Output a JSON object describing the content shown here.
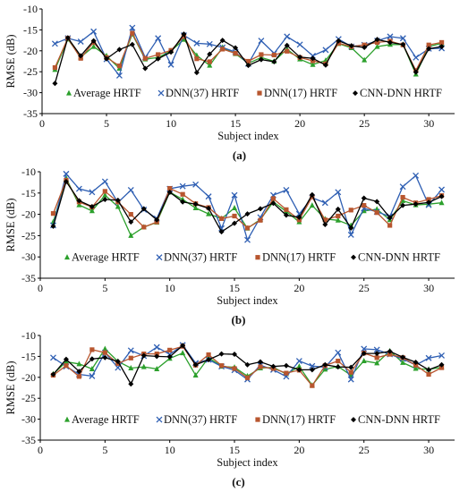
{
  "chart_data": [
    {
      "type": "line",
      "panel_label": "(a)",
      "xlabel": "Subject index",
      "ylabel": "RMSE (dB)",
      "xlim": [
        0,
        32
      ],
      "ylim": [
        -35,
        -10
      ],
      "xticks": [
        0,
        5,
        10,
        15,
        20,
        25,
        30
      ],
      "yticks": [
        -35,
        -30,
        -25,
        -20,
        -15,
        -10
      ],
      "grid": "none",
      "legend": "bottom-inside",
      "x": [
        1,
        2,
        3,
        4,
        5,
        6,
        7,
        8,
        9,
        10,
        11,
        12,
        13,
        14,
        15,
        16,
        17,
        18,
        19,
        20,
        21,
        22,
        23,
        24,
        25,
        26,
        27,
        28,
        29,
        30,
        31
      ],
      "series": [
        {
          "name": "Average HRTF",
          "color": "#2ca02c",
          "marker": "triangle",
          "values": [
            -24.5,
            -17.2,
            -21.5,
            -19.0,
            -21.2,
            -24.2,
            -16.0,
            -22.0,
            -21.6,
            -20.0,
            -17.3,
            -21.1,
            -23.5,
            -19.2,
            -20.7,
            -23.0,
            -21.6,
            -22.5,
            -19.6,
            -22.0,
            -23.3,
            -22.3,
            -18.3,
            -19.3,
            -22.2,
            -19.0,
            -18.5,
            -18.5,
            -25.6,
            -19.0,
            -18.2
          ]
        },
        {
          "name": "DNN(37) HRTF",
          "color": "#2f5fb3",
          "marker": "x",
          "values": [
            -18.3,
            -17.0,
            -17.8,
            -15.4,
            -22.0,
            -25.9,
            -14.5,
            -21.6,
            -17.0,
            -23.3,
            -16.3,
            -18.2,
            -18.4,
            -19.2,
            -20.3,
            -23.1,
            -17.6,
            -20.6,
            -16.6,
            -18.5,
            -21.2,
            -19.8,
            -17.2,
            -19.0,
            -18.6,
            -17.6,
            -16.6,
            -17.0,
            -21.6,
            -19.5,
            -19.4
          ]
        },
        {
          "name": "DNN(17) HRTF",
          "color": "#b8562f",
          "marker": "square",
          "values": [
            -24.0,
            -17.0,
            -21.8,
            -18.0,
            -21.6,
            -23.6,
            -15.8,
            -21.8,
            -20.9,
            -19.9,
            -16.6,
            -21.9,
            -22.6,
            -19.6,
            -20.6,
            -22.5,
            -20.9,
            -21.0,
            -20.1,
            -21.6,
            -22.4,
            -23.1,
            -18.2,
            -19.0,
            -18.6,
            -18.0,
            -17.7,
            -18.6,
            -24.7,
            -18.6,
            -18.0
          ]
        },
        {
          "name": "CNN-DNN HRTF",
          "color": "#000000",
          "marker": "diamond",
          "values": [
            -27.8,
            -16.9,
            -21.2,
            -17.6,
            -21.9,
            -19.7,
            -18.5,
            -24.2,
            -21.9,
            -20.3,
            -16.0,
            -25.2,
            -20.8,
            -17.5,
            -19.3,
            -23.5,
            -22.1,
            -22.6,
            -18.7,
            -21.5,
            -21.8,
            -23.4,
            -17.6,
            -18.8,
            -19.2,
            -17.3,
            -18.0,
            -18.5,
            -25.1,
            -19.5,
            -19.0
          ]
        }
      ]
    },
    {
      "type": "line",
      "panel_label": "(b)",
      "xlabel": "Subject index",
      "ylabel": "RMSE (dB)",
      "xlim": [
        0,
        32
      ],
      "ylim": [
        -35,
        -10
      ],
      "xticks": [
        0,
        5,
        10,
        15,
        20,
        25,
        30
      ],
      "yticks": [
        -35,
        -30,
        -25,
        -20,
        -15,
        -10
      ],
      "grid": "none",
      "legend": "bottom-inside",
      "x": [
        1,
        2,
        3,
        4,
        5,
        6,
        7,
        8,
        9,
        10,
        11,
        12,
        13,
        14,
        15,
        16,
        17,
        18,
        19,
        20,
        21,
        22,
        23,
        24,
        25,
        26,
        27,
        28,
        29,
        30,
        31
      ],
      "series": [
        {
          "name": "Average HRTF",
          "color": "#2ca02c",
          "marker": "triangle",
          "values": [
            -21.8,
            -11.5,
            -17.8,
            -19.2,
            -15.5,
            -18.2,
            -25.0,
            -23.0,
            -21.9,
            -14.8,
            -16.5,
            -18.5,
            -19.9,
            -21.0,
            -18.5,
            -23.3,
            -21.2,
            -17.1,
            -19.3,
            -21.8,
            -17.9,
            -21.1,
            -21.4,
            -22.6,
            -19.2,
            -18.8,
            -21.3,
            -16.8,
            -17.8,
            -17.6,
            -17.3
          ]
        },
        {
          "name": "DNN(37) HRTF",
          "color": "#2f5fb3",
          "marker": "x",
          "values": [
            -22.6,
            -10.5,
            -14.0,
            -14.8,
            -12.3,
            -17.2,
            -14.3,
            -18.9,
            -21.0,
            -14.0,
            -13.4,
            -13.0,
            -15.8,
            -23.3,
            -15.5,
            -26.0,
            -20.7,
            -15.5,
            -14.3,
            -19.9,
            -16.1,
            -17.3,
            -14.8,
            -24.8,
            -18.6,
            -19.4,
            -20.5,
            -13.5,
            -10.9,
            -17.8,
            -14.2
          ]
        },
        {
          "name": "DNN(17) HRTF",
          "color": "#b8562f",
          "marker": "square",
          "values": [
            -19.8,
            -12.0,
            -17.1,
            -18.3,
            -14.6,
            -17.1,
            -20.0,
            -23.0,
            -21.8,
            -13.9,
            -15.3,
            -17.5,
            -18.4,
            -21.0,
            -20.4,
            -23.2,
            -21.4,
            -16.3,
            -18.9,
            -21.3,
            -15.9,
            -21.3,
            -20.4,
            -19.0,
            -17.9,
            -19.6,
            -22.6,
            -16.0,
            -17.3,
            -16.5,
            -15.6
          ]
        },
        {
          "name": "CNN-DNN HRTF",
          "color": "#000000",
          "marker": "diamond",
          "values": [
            -22.8,
            -12.3,
            -16.8,
            -18.2,
            -16.5,
            -16.7,
            -21.8,
            -18.7,
            -21.3,
            -14.8,
            -17.1,
            -17.6,
            -18.6,
            -24.1,
            -22.1,
            -19.9,
            -18.7,
            -17.4,
            -20.2,
            -20.7,
            -15.4,
            -22.4,
            -18.8,
            -23.2,
            -16.2,
            -17.0,
            -20.8,
            -17.9,
            -17.6,
            -17.2,
            -15.8
          ]
        }
      ]
    },
    {
      "type": "line",
      "panel_label": "(c)",
      "xlabel": "Subject index",
      "ylabel": "RMSE (dB)",
      "xlim": [
        0,
        32
      ],
      "ylim": [
        -35,
        -10
      ],
      "xticks": [
        0,
        5,
        10,
        15,
        20,
        25,
        30
      ],
      "yticks": [
        -35,
        -30,
        -25,
        -20,
        -15,
        -10
      ],
      "grid": "none",
      "legend": "bottom-inside",
      "x": [
        1,
        2,
        3,
        4,
        5,
        6,
        7,
        8,
        9,
        10,
        11,
        12,
        13,
        14,
        15,
        16,
        17,
        18,
        19,
        20,
        21,
        22,
        23,
        24,
        25,
        26,
        27,
        28,
        29,
        30,
        31
      ],
      "series": [
        {
          "name": "Average HRTF",
          "color": "#2ca02c",
          "marker": "triangle",
          "values": [
            -19.2,
            -16.3,
            -16.8,
            -18.0,
            -13.2,
            -16.2,
            -17.8,
            -17.5,
            -18.0,
            -15.5,
            -14.2,
            -19.5,
            -15.3,
            -17.4,
            -17.6,
            -19.7,
            -17.8,
            -17.6,
            -19.2,
            -17.4,
            -21.9,
            -18.1,
            -17.4,
            -19.5,
            -16.1,
            -16.6,
            -13.7,
            -16.5,
            -17.9,
            -18.1,
            -17.6
          ]
        },
        {
          "name": "DNN(37) HRTF",
          "color": "#2f5fb3",
          "marker": "x",
          "values": [
            -15.3,
            -17.4,
            -19.3,
            -19.7,
            -14.1,
            -17.7,
            -13.6,
            -14.9,
            -12.8,
            -14.5,
            -12.3,
            -16.6,
            -15.8,
            -17.4,
            -18.3,
            -20.5,
            -17.1,
            -18.2,
            -19.8,
            -16.1,
            -17.3,
            -17.6,
            -14.1,
            -20.5,
            -13.2,
            -13.4,
            -14.5,
            -15.6,
            -17.1,
            -15.4,
            -14.8
          ]
        },
        {
          "name": "DNN(17) HRTF",
          "color": "#b8562f",
          "marker": "square",
          "values": [
            -19.5,
            -17.2,
            -19.8,
            -13.4,
            -14.1,
            -16.7,
            -15.4,
            -14.4,
            -14.4,
            -13.5,
            -12.6,
            -17.1,
            -14.6,
            -17.2,
            -17.9,
            -20.1,
            -17.5,
            -17.9,
            -19.0,
            -18.3,
            -22.0,
            -17.2,
            -16.1,
            -18.8,
            -14.2,
            -15.3,
            -14.5,
            -15.3,
            -17.1,
            -19.3,
            -17.7
          ]
        },
        {
          "name": "CNN-DNN HRTF",
          "color": "#000000",
          "marker": "diamond",
          "values": [
            -19.3,
            -15.7,
            -18.6,
            -15.6,
            -15.3,
            -16.2,
            -21.6,
            -14.8,
            -15.0,
            -15.1,
            -12.4,
            -17.0,
            -15.8,
            -14.4,
            -14.5,
            -17.0,
            -16.3,
            -17.4,
            -17.2,
            -18.2,
            -18.2,
            -17.0,
            -17.5,
            -17.6,
            -14.3,
            -14.3,
            -13.8,
            -15.2,
            -16.4,
            -18.2,
            -17.0
          ]
        }
      ]
    }
  ]
}
